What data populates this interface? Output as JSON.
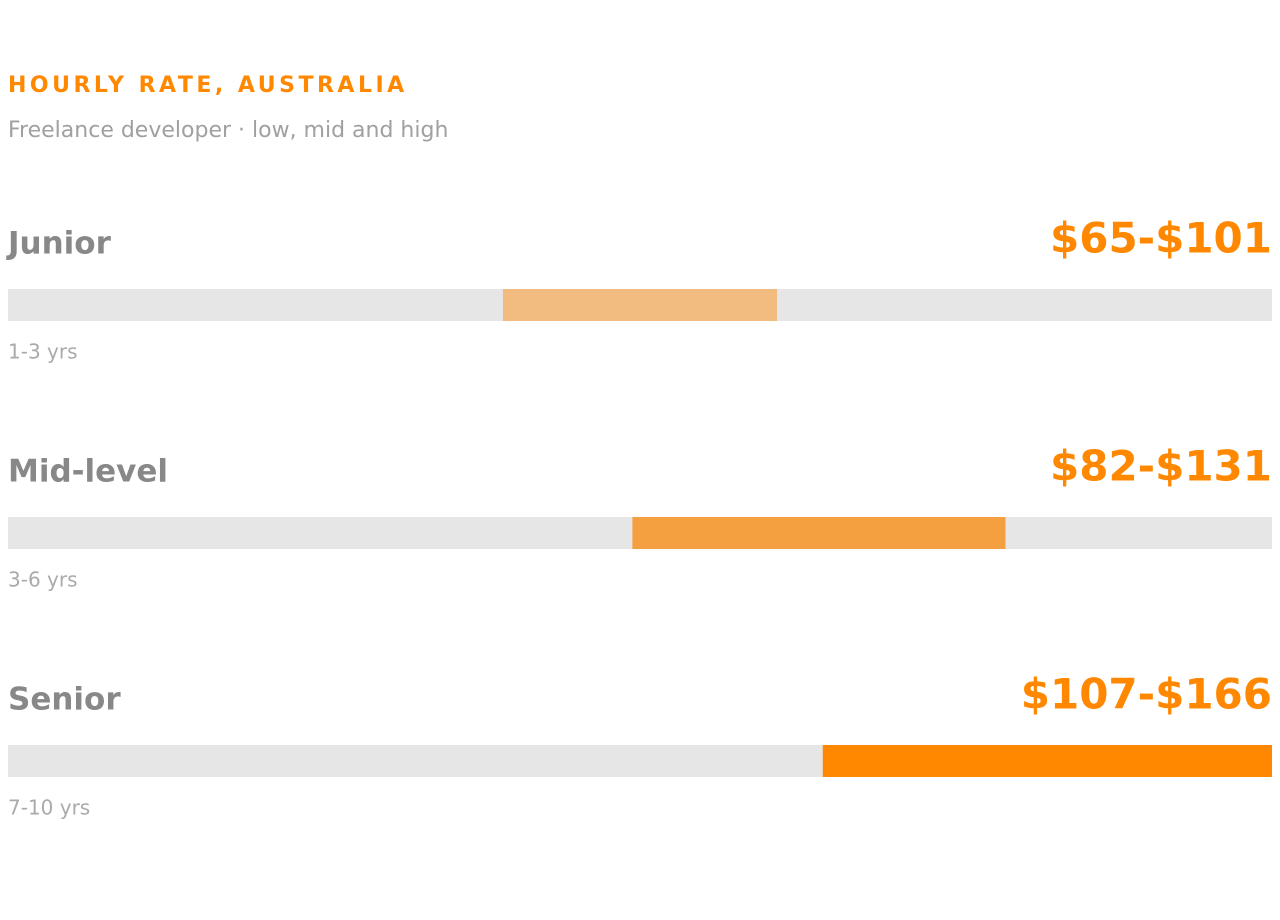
{
  "chart_data": {
    "type": "range",
    "title": "HOURLY RATE, AUSTRALIA",
    "subtitle": "Freelance developer · low, mid and high",
    "categories": [
      "Junior",
      "Mid-level",
      "Senior"
    ],
    "annotations": [
      "1-3 yrs",
      "3-6 yrs",
      "7-10 yrs"
    ],
    "low": [
      65,
      82,
      107
    ],
    "high": [
      101,
      131,
      166
    ],
    "value_labels": [
      "$65-$101",
      "$82-$131",
      "$107-$166"
    ],
    "colors": [
      "#f2bb7f",
      "#f5a040",
      "#ff8800"
    ],
    "xlim": [
      0,
      166
    ]
  }
}
